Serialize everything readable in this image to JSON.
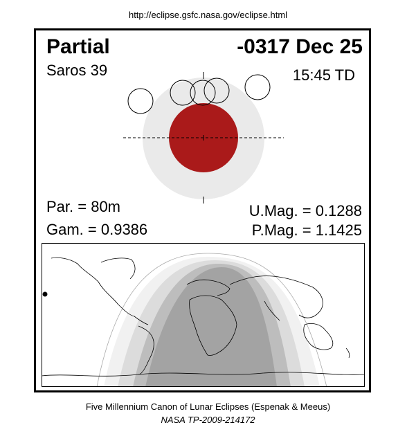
{
  "header": {
    "url": "http://eclipse.gsfc.nasa.gov/eclipse.html"
  },
  "eclipse": {
    "type": "Partial",
    "date": "-0317 Dec 25",
    "saros": "Saros  39",
    "time": "15:45 TD",
    "par": "Par. =  80m",
    "gam": "Gam. = 0.9386",
    "umag": "U.Mag. = 0.1288",
    "pmag": "P.Mag. = 1.1425"
  },
  "colors": {
    "umbra": "#eaeaea",
    "moon_eclipsed": "#aa1a1a",
    "penumbral_zone_light": "#f1f1f1",
    "penumbral_zone_mid": "#d3d3d3",
    "umbral_zone": "#bdbdbd",
    "night_zone": "#a3a3a3"
  },
  "footer": {
    "credit": "Five Millennium Canon of Lunar Eclipses (Espenak & Meeus)",
    "publication": "NASA TP-2009-214172"
  }
}
